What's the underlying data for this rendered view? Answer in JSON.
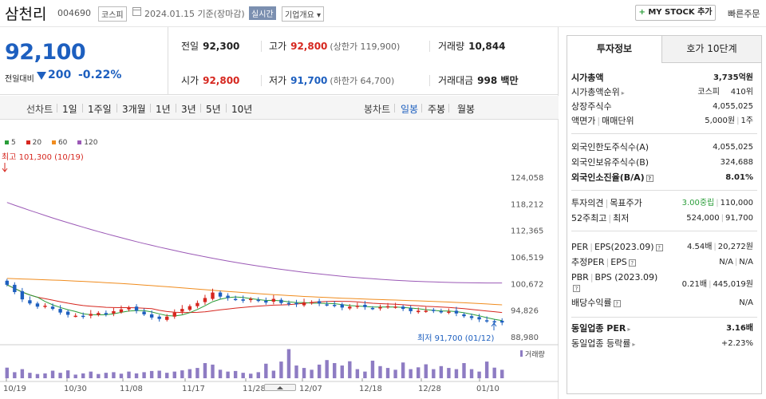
{
  "header": {
    "name": "삼천리",
    "code": "004690",
    "market": "코스피",
    "date": "2024.01.15 기준(장마감)",
    "realtime": "실시간",
    "overview": "기업개요 ▾",
    "mystock": "MY STOCK 추가",
    "quick_order": "빠른주문"
  },
  "quote": {
    "price": "92,100",
    "change_label": "전일대비",
    "change": "200",
    "change_pct": "-0.22%",
    "prev_close_label": "전일",
    "prev_close": "92,300",
    "high_label": "고가",
    "high": "92,800",
    "upper_limit": "(상한가 119,900)",
    "volume_label": "거래량",
    "volume": "10,844",
    "open_label": "시가",
    "open": "92,800",
    "low_label": "저가",
    "low": "91,700",
    "lower_limit": "(하한가 64,700)",
    "amount_label": "거래대금",
    "amount": "998 백만"
  },
  "chart_tabs": {
    "line_label": "선차트",
    "periods": [
      "1일",
      "1주일",
      "3개월",
      "1년",
      "3년",
      "5년",
      "10년"
    ],
    "candle_label": "봉차트",
    "candles": [
      "일봉",
      "주봉",
      "월봉"
    ],
    "active_candle": "일봉"
  },
  "chart_data": {
    "type": "candlestick",
    "legend": [
      "5",
      "20",
      "60",
      "120"
    ],
    "colors": {
      "ma5": "#2a9d39",
      "ma20": "#d6271f",
      "ma60": "#f08c1e",
      "ma120": "#9b59b6",
      "up": "#d6271f",
      "down": "#1d5fbf",
      "volume": "#8e7cc3"
    },
    "y_ticks": [
      "124,058",
      "118,212",
      "112,365",
      "106,519",
      "100,672",
      "94,826",
      "88,980"
    ],
    "ylim": [
      88980,
      124058
    ],
    "x_ticks": [
      "10/19",
      "10/30",
      "11/08",
      "11/17",
      "11/28",
      "12/07",
      "12/18",
      "12/28",
      "01/10"
    ],
    "high_annotation": "최고 101,300 (10/19)",
    "low_annotation": "최저 91,700 (01/12)",
    "volume_label": "거래량",
    "closes": [
      100400,
      98800,
      97200,
      96300,
      95600,
      95800,
      95100,
      94300,
      93800,
      93600,
      93400,
      94000,
      94200,
      93900,
      94600,
      95000,
      95400,
      94700,
      93900,
      93200,
      92900,
      93400,
      94300,
      95100,
      95700,
      96400,
      97500,
      98700,
      97800,
      97500,
      97200,
      96900,
      97300,
      96900,
      96500,
      97300,
      96400,
      96200,
      96100,
      96500,
      96600,
      96300,
      96000,
      95900,
      95400,
      95600,
      95800,
      95500,
      95200,
      95500,
      95700,
      95600,
      95100,
      94600,
      94700,
      94700,
      94800,
      94400,
      94500,
      94100,
      93500,
      93100,
      92800,
      92400,
      92300,
      92100
    ],
    "volumes": [
      0.35,
      0.2,
      0.3,
      0.18,
      0.14,
      0.16,
      0.25,
      0.18,
      0.26,
      0.12,
      0.16,
      0.22,
      0.14,
      0.18,
      0.2,
      0.15,
      0.22,
      0.16,
      0.2,
      0.24,
      0.25,
      0.18,
      0.22,
      0.26,
      0.3,
      0.34,
      0.5,
      0.45,
      0.28,
      0.22,
      0.24,
      0.18,
      0.15,
      0.2,
      0.48,
      0.25,
      0.55,
      0.96,
      0.42,
      0.34,
      0.28,
      0.45,
      0.6,
      0.5,
      0.42,
      0.56,
      0.3,
      0.22,
      0.58,
      0.4,
      0.34,
      0.28,
      0.52,
      0.3,
      0.36,
      0.46,
      0.3,
      0.4,
      0.34,
      0.3,
      0.5,
      0.3,
      0.22,
      0.55,
      0.35,
      0.28
    ]
  },
  "right": {
    "tab_active": "투자정보",
    "tab_other": "호가 10단계",
    "market_cap_label": "시가총액",
    "market_cap": "3,735억원",
    "cap_rank_label": "시가총액순위",
    "cap_rank_val1": "코스피",
    "cap_rank_val2": "410위",
    "shares_label": "상장주식수",
    "shares": "4,055,025",
    "face_label": "액면가",
    "unit_label": "매매단위",
    "face": "5,000원",
    "unit": "1주",
    "foreign_limit_label": "외국인한도주식수(A)",
    "foreign_limit": "4,055,025",
    "foreign_hold_label": "외국인보유주식수(B)",
    "foreign_hold": "324,688",
    "foreign_ratio_label": "외국인소진율(B/A)",
    "foreign_ratio": "8.01%",
    "opinion_label": "투자의견",
    "target_label": "목표주가",
    "opinion": "3.00중립",
    "target": "110,000",
    "w52_label1": "52주최고",
    "w52_label2": "최저",
    "w52_high": "524,000",
    "w52_low": "91,700",
    "per_label": "PER",
    "eps_label": "EPS(2023.09)",
    "per": "4.54배",
    "eps": "20,272원",
    "est_per_label": "추정PER",
    "est_eps_label": "EPS",
    "est_per": "N/A",
    "est_eps": "N/A",
    "pbr_label": "PBR",
    "bps_label": "BPS (2023.09)",
    "pbr": "0.21배",
    "bps": "445,019원",
    "div_label": "배당수익률",
    "div": "N/A",
    "ind_per_label": "동일업종 PER",
    "ind_per": "3.16배",
    "ind_rate_label": "동일업종 등락률",
    "ind_rate": "+2.23%"
  }
}
